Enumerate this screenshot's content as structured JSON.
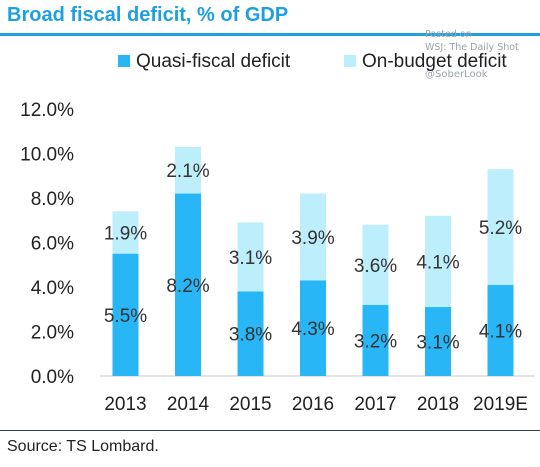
{
  "header": {
    "title": "Broad fiscal deficit, % of GDP"
  },
  "watermark": {
    "line1": "Posted on",
    "line2": "WSJ: The Daily Shot",
    "handle": "@SoberLook"
  },
  "footer": {
    "source": "Source: TS Lombard."
  },
  "colors": {
    "title": "#1ea0e0",
    "quasi": "#29b6f6",
    "on_budget": "#bdeefc",
    "label": "#333333"
  },
  "chart_data": {
    "type": "bar",
    "stacked": true,
    "categories": [
      "2013",
      "2014",
      "2015",
      "2016",
      "2017",
      "2018",
      "2019E"
    ],
    "series": [
      {
        "name": "Quasi-fiscal deficit",
        "values": [
          5.5,
          8.2,
          3.8,
          4.3,
          3.2,
          3.1,
          4.1
        ],
        "color": "#29b6f6"
      },
      {
        "name": "On-budget deficit",
        "values": [
          1.9,
          2.1,
          3.1,
          3.9,
          3.6,
          4.1,
          5.2
        ],
        "color": "#bdeefc"
      }
    ],
    "data_labels": [
      [
        "5.5%",
        "8.2%",
        "3.8%",
        "4.3%",
        "3.2%",
        "3.1%",
        "4.1%"
      ],
      [
        "1.9%",
        "2.1%",
        "3.1%",
        "3.9%",
        "3.6%",
        "4.1%",
        "5.2%"
      ]
    ],
    "yticks": [
      0,
      2,
      4,
      6,
      8,
      10,
      12
    ],
    "ytick_labels": [
      "0.0%",
      "2.0%",
      "4.0%",
      "6.0%",
      "8.0%",
      "10.0%",
      "12.0%"
    ],
    "ylim": [
      0,
      12
    ],
    "grid": false,
    "legend_position": "top"
  }
}
